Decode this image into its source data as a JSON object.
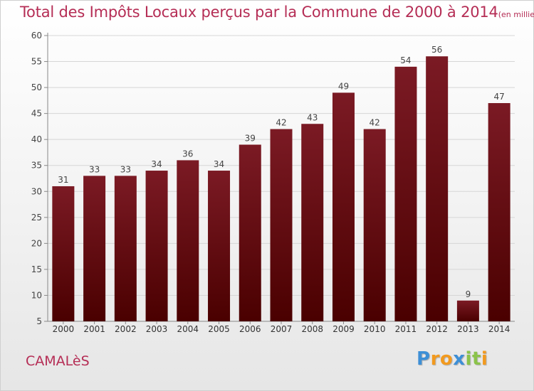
{
  "chart_data": {
    "type": "bar",
    "title": "Total des Impôts Locaux perçus par la Commune de 2000 à 2014",
    "unit_label": "(en milliers d'€)",
    "categories": [
      "2000",
      "2001",
      "2002",
      "2003",
      "2004",
      "2005",
      "2006",
      "2007",
      "2008",
      "2009",
      "2010",
      "2011",
      "2012",
      "2013",
      "2014"
    ],
    "values": [
      31,
      33,
      33,
      34,
      36,
      34,
      39,
      42,
      43,
      49,
      42,
      54,
      56,
      9,
      47
    ],
    "ylim": [
      5,
      60
    ],
    "yticks": [
      5,
      10,
      15,
      20,
      25,
      30,
      35,
      40,
      45,
      50,
      55,
      60
    ],
    "grid": true,
    "bar_color": "#7b1a24",
    "bar_color_dark": "#4a0000",
    "title_color": "#b52d55"
  },
  "commune_name": "CAMALèS",
  "logo": {
    "letters": [
      "P",
      "r",
      "o",
      "x",
      "i",
      "t",
      "i"
    ],
    "colors": [
      "#3d8fd6",
      "#f29a1f",
      "#f29a1f",
      "#3d8fd6",
      "#8bc34a",
      "#8bc34a",
      "#f29a1f"
    ]
  }
}
